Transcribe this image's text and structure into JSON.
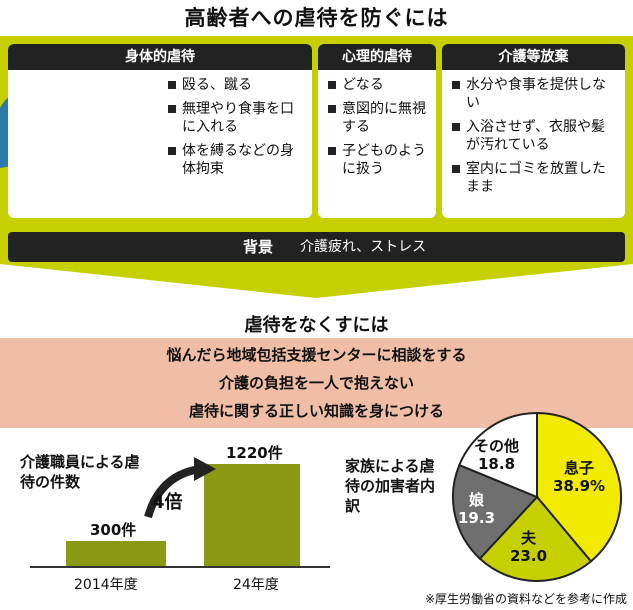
{
  "title": "高齢者への虐待を防ぐには",
  "panels": [
    {
      "heading": "身体的虐待",
      "items": [
        "殴る、蹴る",
        "無理やり食事を口に入れる",
        "体を縛るなどの身体拘束"
      ]
    },
    {
      "heading": "心理的虐待",
      "items": [
        "どなる",
        "意図的に無視する",
        "子どものように扱う"
      ]
    },
    {
      "heading": "介護等放棄",
      "items": [
        "水分や食事を提供しない",
        "入浴させず、衣服や髪が汚れている",
        "室内にゴミを放置したまま"
      ]
    }
  ],
  "background": {
    "label": "背景",
    "value": "介護疲れ、ストレス"
  },
  "prevention": {
    "title": "虐待をなくすには",
    "items": [
      "悩んだら地域包括支援センターに相談をする",
      "介護の負担を一人で抱えない",
      "虐待に関する正しい知識を身につける"
    ]
  },
  "chart_data": [
    {
      "type": "bar",
      "title": "介護職員による虐待の件数",
      "categories": [
        "2014年度",
        "24年度"
      ],
      "values": [
        300,
        1220
      ],
      "value_labels": [
        "300件",
        "1220件"
      ],
      "annotation": "4倍"
    },
    {
      "type": "pie",
      "title": "家族による虐待の加害者内訳",
      "labels": [
        "息子",
        "夫",
        "娘",
        "その他"
      ],
      "values": [
        38.9,
        23.0,
        19.3,
        18.8
      ],
      "value_labels": [
        "38.9%",
        "23.0",
        "19.3",
        "18.8"
      ],
      "colors": [
        "#f2ea00",
        "#c6d000",
        "#6f6f6f",
        "#ffffff"
      ]
    }
  ],
  "footnote": "※厚生労働省の資料などを参考に作成"
}
